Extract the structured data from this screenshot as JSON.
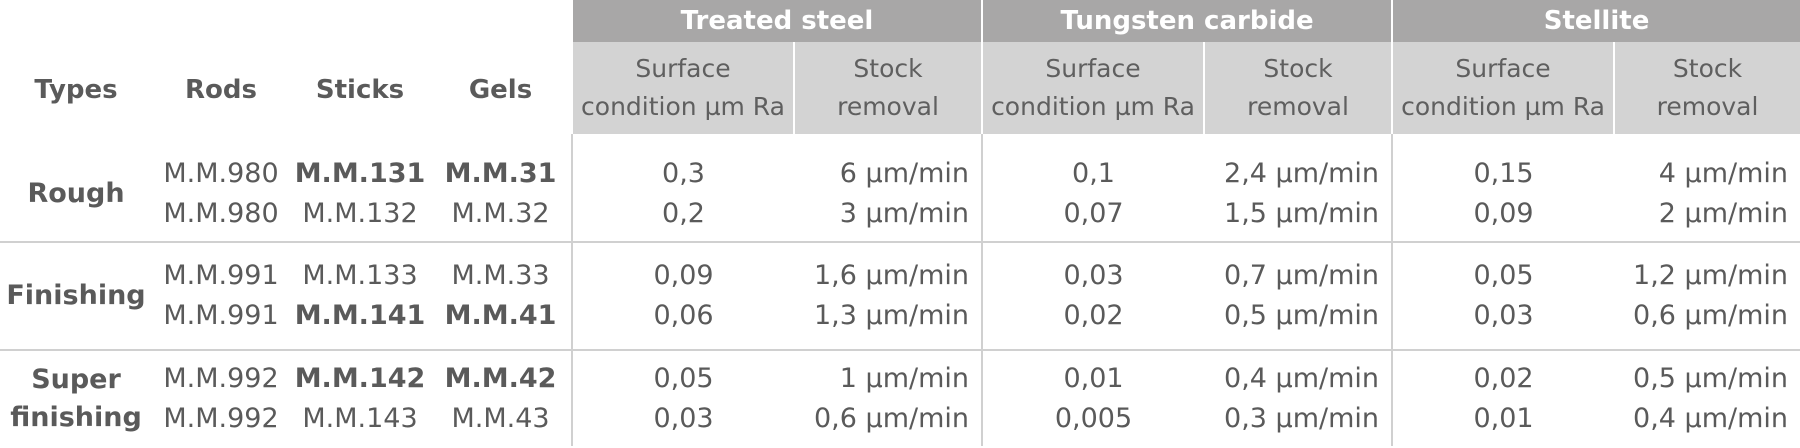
{
  "header": {
    "left_columns": [
      "Types",
      "Rods",
      "Sticks",
      "Gels"
    ],
    "groups": [
      {
        "title": "Treated steel",
        "sub": [
          [
            "Surface",
            "condition µm Ra"
          ],
          [
            "Stock",
            "removal"
          ]
        ]
      },
      {
        "title": "Tungsten carbide",
        "sub": [
          [
            "Surface",
            "condition µm Ra"
          ],
          [
            "Stock",
            "removal"
          ]
        ]
      },
      {
        "title": "Stellite",
        "sub": [
          [
            "Surface",
            "condition µm Ra"
          ],
          [
            "Stock",
            "removal"
          ]
        ]
      }
    ]
  },
  "colors": {
    "group_header_bg": "#a8a7a7",
    "sub_header_bg": "#d3d3d3",
    "text": "#5a5a5a",
    "divider": "#d0d0d0"
  },
  "rows": [
    {
      "type": [
        "Rough"
      ],
      "rods": [
        "M.M.980",
        "M.M.980"
      ],
      "sticks": [
        "M.M.131",
        "M.M.132"
      ],
      "sticks_bold": [
        true,
        false
      ],
      "gels": [
        "M.M.31",
        "M.M.32"
      ],
      "gels_bold": [
        true,
        false
      ],
      "steel_surface": [
        "0,3",
        "0,2"
      ],
      "steel_removal": [
        "6 µm/min",
        "3 µm/min"
      ],
      "carbide_surface": [
        "0,1",
        "0,07"
      ],
      "carbide_removal": [
        "2,4 µm/min",
        "1,5 µm/min"
      ],
      "stellite_surface": [
        "0,15",
        "0,09"
      ],
      "stellite_removal": [
        "4 µm/min",
        "2 µm/min"
      ]
    },
    {
      "type": [
        "Finishing"
      ],
      "rods": [
        "M.M.991",
        "M.M.991"
      ],
      "sticks": [
        "M.M.133",
        "M.M.141"
      ],
      "sticks_bold": [
        false,
        true
      ],
      "gels": [
        "M.M.33",
        "M.M.41"
      ],
      "gels_bold": [
        false,
        true
      ],
      "steel_surface": [
        "0,09",
        "0,06"
      ],
      "steel_removal": [
        "1,6 µm/min",
        "1,3 µm/min"
      ],
      "carbide_surface": [
        "0,03",
        "0,02"
      ],
      "carbide_removal": [
        "0,7 µm/min",
        "0,5 µm/min"
      ],
      "stellite_surface": [
        "0,05",
        "0,03"
      ],
      "stellite_removal": [
        "1,2 µm/min",
        "0,6 µm/min"
      ]
    },
    {
      "type": [
        "Super",
        "finishing"
      ],
      "rods": [
        "M.M.992",
        "M.M.992"
      ],
      "sticks": [
        "M.M.142",
        "M.M.143"
      ],
      "sticks_bold": [
        true,
        false
      ],
      "gels": [
        "M.M.42",
        "M.M.43"
      ],
      "gels_bold": [
        true,
        false
      ],
      "steel_surface": [
        "0,05",
        "0,03"
      ],
      "steel_removal": [
        "1 µm/min",
        "0,6 µm/min"
      ],
      "carbide_surface": [
        "0,01",
        "0,005"
      ],
      "carbide_removal": [
        "0,4 µm/min",
        "0,3 µm/min"
      ],
      "stellite_surface": [
        "0,02",
        "0,01"
      ],
      "stellite_removal": [
        "0,5 µm/min",
        "0,4 µm/min"
      ]
    }
  ]
}
